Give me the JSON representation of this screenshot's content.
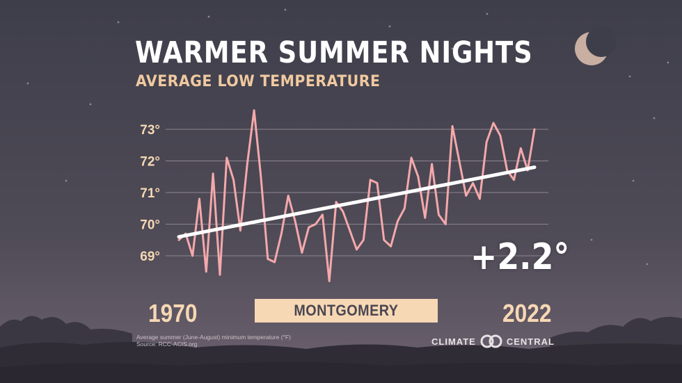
{
  "header": {
    "title": "WARMER SUMMER NIGHTS",
    "subtitle": "AVERAGE LOW TEMPERATURE"
  },
  "location_label": "MONTGOMERY",
  "change_label": "+2.2°",
  "footnote": {
    "line1": "Average summer (June-August) minimum temperature (°F)",
    "line2": "Source: RCC-ACIS.org"
  },
  "logo": {
    "left": "CLIMATE",
    "right": "CENTRAL",
    "icon": "linked-rings-icon"
  },
  "decor": {
    "moon": "crescent-moon-icon",
    "trees": "tree-silhouette"
  },
  "colors": {
    "sky_top": "#3e3e4a",
    "sky_bottom": "#6e6270",
    "series_line": "#f4a9ab",
    "trend_line": "#ffffff",
    "accent": "#f6d8b4",
    "grid": "#8d8590"
  },
  "chart_data": {
    "type": "line",
    "title": "WARMER SUMMER NIGHTS",
    "subtitle": "AVERAGE LOW TEMPERATURE",
    "x_start_label": "1970",
    "x_end_label": "2022",
    "ylim": [
      68.5,
      73.5
    ],
    "yticks": [
      69,
      70,
      71,
      72,
      73
    ],
    "ytick_labels": [
      "69°",
      "70°",
      "71°",
      "72°",
      "73°"
    ],
    "grid": true,
    "x": [
      1970,
      1971,
      1972,
      1973,
      1974,
      1975,
      1976,
      1977,
      1978,
      1979,
      1980,
      1981,
      1982,
      1983,
      1984,
      1985,
      1986,
      1987,
      1988,
      1989,
      1990,
      1991,
      1992,
      1993,
      1994,
      1995,
      1996,
      1997,
      1998,
      1999,
      2000,
      2001,
      2002,
      2003,
      2004,
      2005,
      2006,
      2007,
      2008,
      2009,
      2010,
      2011,
      2012,
      2013,
      2014,
      2015,
      2016,
      2017,
      2018,
      2019,
      2020,
      2021,
      2022
    ],
    "series": [
      {
        "values": [
          69.5,
          69.7,
          69.0,
          70.8,
          68.5,
          71.6,
          68.4,
          72.1,
          71.4,
          69.8,
          71.9,
          73.6,
          71.5,
          68.9,
          68.8,
          69.7,
          70.9,
          70.1,
          69.1,
          69.9,
          70.0,
          70.3,
          68.2,
          70.7,
          70.4,
          69.8,
          69.2,
          69.5,
          71.4,
          71.3,
          69.5,
          69.3,
          70.1,
          70.5,
          72.1,
          71.5,
          70.2,
          71.9,
          70.3,
          70.0,
          73.1,
          72.0,
          70.9,
          71.3,
          70.8,
          72.6,
          73.2,
          72.8,
          71.7,
          71.4,
          72.4,
          71.7,
          73.0
        ]
      }
    ],
    "trend": {
      "x": [
        1970,
        2022
      ],
      "y": [
        69.6,
        71.8
      ]
    }
  }
}
